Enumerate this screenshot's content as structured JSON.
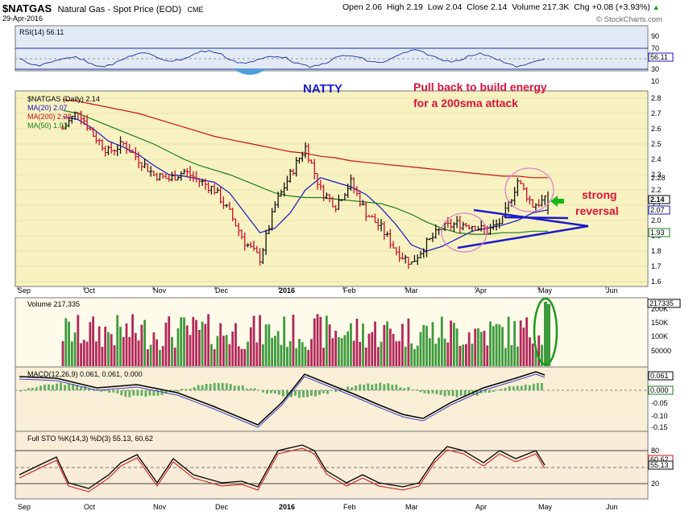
{
  "header": {
    "symbol": "$NATGAS",
    "name": "Natural Gas - Spot Price (EOD)",
    "exchange": "CME",
    "date": "29-Apr-2016",
    "open": "Open 2.06",
    "high": "High 2.19",
    "low": "Low 2.04",
    "close": "Close 2.14",
    "volume": "Volume 217.3K",
    "chg": "Chg +0.08 (+3.93%)",
    "chg_arrow": "▲",
    "watermark": "© StockCharts.com"
  },
  "colors": {
    "price_bg": "#f8f2c0",
    "rsi_bg": "#e2ebf5",
    "vol_bg": "#fffbea",
    "macd_bg": "#f8efd6",
    "sto_bg": "#f9ecd8",
    "up": "#228b22",
    "down": "#c8102e",
    "ma20": "#1515c8",
    "ma200": "#d01010",
    "ma50": "#1b7d1b",
    "annotation_blue": "#1a1acd",
    "annotation_red": "#e0103a",
    "circle": "#e080d0",
    "volume_oval": "#1a9a1a",
    "arrow": "#18b818"
  },
  "annotations": {
    "natty": "NATTY",
    "pullback_line1": "Pull back to build energy",
    "pullback_line2": "for a 200sma attack",
    "strong": "strong",
    "reversal": "reversal"
  },
  "panels": {
    "rsi": {
      "label": "RSI(14) 56.11",
      "value_tag": "56.11",
      "ticks": [
        "90",
        "70",
        "50",
        "30",
        "10"
      ]
    },
    "price": {
      "label": "$NATGAS (Daily) 2.14",
      "ma20_label": "MA(20) 2.07",
      "ma200_label": "MA(200) 2.28",
      "ma50_label": "MA(50) 1.93",
      "tags": [
        "2.28",
        "2.14",
        "2.07",
        "1.93"
      ],
      "ticks": [
        "2.8",
        "2.7",
        "2.6",
        "2.5",
        "2.4",
        "2.3",
        "2.2",
        "2.1",
        "2.0",
        "1.9",
        "1.8",
        "1.7",
        "1.6"
      ]
    },
    "volume": {
      "label": "Volume 217,335",
      "value_tag": "217335",
      "ticks": [
        "200K",
        "150K",
        "100K",
        "50000"
      ]
    },
    "macd": {
      "label": "MACD(12,26,9) 0.061, 0.061, 0.000",
      "tags": [
        "0.061",
        "0.000"
      ],
      "ticks": [
        "-0.05",
        "-0.10",
        "-0.15"
      ]
    },
    "sto": {
      "label": "Full STO %K(14,3) %D(3) 55.13, 60.62",
      "tags": [
        "60.62",
        "55.13"
      ],
      "ticks": [
        "80",
        "20"
      ]
    }
  },
  "x_axis": {
    "labels": [
      "Sep",
      "Oct",
      "Nov",
      "Dec",
      "2016",
      "Feb",
      "Mar",
      "Apr",
      "May",
      "Jun"
    ]
  },
  "chart_data": {
    "type": "line",
    "title": "$NATGAS Natural Gas - Spot Price (EOD) CME",
    "ylim": [
      1.6,
      2.8
    ],
    "x": [
      "Sep 25",
      "Oct 1",
      "Oct 8",
      "Oct 15",
      "Oct 22",
      "Oct 29",
      "Nov 5",
      "Nov 12",
      "Nov 19",
      "Nov 26",
      "Dec 3",
      "Dec 10",
      "Dec 17",
      "Dec 24",
      "Dec 31",
      "Jan 7",
      "Jan 14",
      "Jan 21",
      "Jan 28",
      "Feb 4",
      "Feb 11",
      "Feb 18",
      "Feb 25",
      "Mar 3",
      "Mar 10",
      "Mar 17",
      "Mar 24",
      "Mar 31",
      "Apr 7",
      "Apr 14",
      "Apr 21",
      "Apr 25",
      "Apr 29"
    ],
    "series": [
      {
        "name": "$NATGAS (Daily)",
        "values": [
          2.6,
          2.72,
          2.56,
          2.45,
          2.5,
          2.4,
          2.3,
          2.27,
          2.32,
          2.26,
          2.2,
          2.05,
          1.86,
          1.75,
          2.1,
          2.3,
          2.48,
          2.2,
          2.1,
          2.25,
          2.05,
          1.95,
          1.8,
          1.72,
          1.85,
          1.95,
          1.98,
          1.97,
          1.93,
          2.0,
          2.26,
          2.1,
          2.14
        ]
      },
      {
        "name": "MA(20)",
        "values": [
          2.68,
          2.66,
          2.6,
          2.52,
          2.48,
          2.43,
          2.36,
          2.3,
          2.29,
          2.27,
          2.25,
          2.18,
          2.05,
          1.92,
          1.95,
          2.05,
          2.2,
          2.28,
          2.25,
          2.22,
          2.17,
          2.08,
          1.97,
          1.84,
          1.8,
          1.83,
          1.88,
          1.93,
          1.95,
          1.97,
          2.0,
          2.05,
          2.07
        ]
      },
      {
        "name": "MA(50)",
        "values": [
          2.72,
          2.7,
          2.66,
          2.62,
          2.58,
          2.54,
          2.5,
          2.45,
          2.4,
          2.36,
          2.33,
          2.3,
          2.26,
          2.22,
          2.18,
          2.16,
          2.15,
          2.15,
          2.14,
          2.13,
          2.12,
          2.11,
          2.08,
          2.04,
          1.99,
          1.95,
          1.92,
          1.91,
          1.91,
          1.92,
          1.92,
          1.93,
          1.93
        ]
      },
      {
        "name": "MA(200)",
        "values": [
          2.79,
          2.78,
          2.76,
          2.74,
          2.72,
          2.7,
          2.67,
          2.64,
          2.61,
          2.58,
          2.55,
          2.53,
          2.51,
          2.49,
          2.47,
          2.45,
          2.44,
          2.42,
          2.41,
          2.39,
          2.38,
          2.37,
          2.36,
          2.35,
          2.34,
          2.33,
          2.32,
          2.31,
          2.3,
          2.29,
          2.29,
          2.28,
          2.28
        ]
      }
    ]
  }
}
